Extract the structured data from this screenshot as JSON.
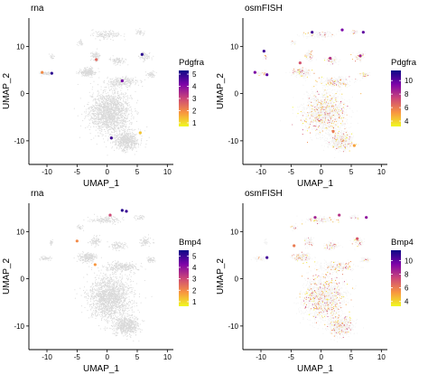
{
  "chart_data": [
    {
      "type": "scatter",
      "title": "rna",
      "xlabel": "UMAP_1",
      "ylabel": "UMAP_2",
      "xlim": [
        -13,
        11
      ],
      "ylim": [
        -15,
        16
      ],
      "xticks": [
        -10,
        -5,
        0,
        5,
        10
      ],
      "yticks": [
        -10,
        0,
        10
      ],
      "legend": {
        "title": "Pdgfra",
        "ticks": [
          1,
          2,
          3,
          4,
          5
        ],
        "range": [
          0.7,
          5.3
        ],
        "placement": "right"
      },
      "highlight": [
        {
          "x": -9.2,
          "y": 4.3,
          "value": 5.0
        },
        {
          "x": -10.8,
          "y": 4.5,
          "value": 2.0
        },
        {
          "x": 5.8,
          "y": 8.3,
          "value": 5.0
        },
        {
          "x": 2.5,
          "y": 2.7,
          "value": 4.2
        },
        {
          "x": -1.8,
          "y": 7.2,
          "value": 2.5
        },
        {
          "x": 5.5,
          "y": -8.3,
          "value": 1.3
        },
        {
          "x": 0.7,
          "y": -9.4,
          "value": 4.8
        }
      ]
    },
    {
      "type": "scatter",
      "title": "osmFISH",
      "xlabel": "UMAP_1",
      "ylabel": "UMAP_2",
      "xlim": [
        -13,
        11
      ],
      "ylim": [
        -15,
        16
      ],
      "xticks": [
        -10,
        -5,
        0,
        5,
        10
      ],
      "yticks": [
        -10,
        0,
        10
      ],
      "legend": {
        "title": "Pdgfra",
        "ticks": [
          4,
          6,
          8,
          10
        ],
        "range": [
          3.2,
          11.5
        ],
        "placement": "right"
      },
      "highlight": [
        {
          "x": -1.5,
          "y": 13.0,
          "value": 10.5
        },
        {
          "x": 3.5,
          "y": 13.5,
          "value": 9.5
        },
        {
          "x": 7.0,
          "y": 13.0,
          "value": 10.0
        },
        {
          "x": -9.5,
          "y": 9.0,
          "value": 10.5
        },
        {
          "x": -11.0,
          "y": 4.5,
          "value": 9.5
        },
        {
          "x": -9.0,
          "y": 4.0,
          "value": 10.0
        },
        {
          "x": -3.5,
          "y": 6.5,
          "value": 7.0
        },
        {
          "x": 1.5,
          "y": 7.5,
          "value": 8.0
        },
        {
          "x": 6.5,
          "y": 8.0,
          "value": 8.5
        },
        {
          "x": 2.0,
          "y": -8.0,
          "value": 6.0
        },
        {
          "x": 5.5,
          "y": -11.0,
          "value": 5.0
        }
      ]
    },
    {
      "type": "scatter",
      "title": "rna",
      "xlabel": "UMAP_1",
      "ylabel": "UMAP_2",
      "xlim": [
        -13,
        11
      ],
      "ylim": [
        -15,
        16
      ],
      "xticks": [
        -10,
        -5,
        0,
        5,
        10
      ],
      "yticks": [
        -10,
        0,
        10
      ],
      "legend": {
        "title": "Bmp4",
        "ticks": [
          1,
          2,
          3,
          4,
          5
        ],
        "range": [
          0.6,
          5.5
        ],
        "placement": "right"
      },
      "highlight": [
        {
          "x": 2.5,
          "y": 14.5,
          "value": 5.2
        },
        {
          "x": 3.2,
          "y": 14.3,
          "value": 5.0
        },
        {
          "x": 0.5,
          "y": 13.5,
          "value": 3.0
        },
        {
          "x": -5.0,
          "y": 8.0,
          "value": 2.0
        },
        {
          "x": -2.0,
          "y": 3.0,
          "value": 1.8
        }
      ]
    },
    {
      "type": "scatter",
      "title": "osmFISH",
      "xlabel": "UMAP_1",
      "ylabel": "UMAP_2",
      "xlim": [
        -13,
        11
      ],
      "ylim": [
        -15,
        16
      ],
      "xticks": [
        -10,
        -5,
        0,
        5,
        10
      ],
      "yticks": [
        -10,
        0,
        10
      ],
      "legend": {
        "title": "Bmp4",
        "ticks": [
          4,
          6,
          8,
          10
        ],
        "range": [
          3.3,
          11.5
        ],
        "placement": "right"
      },
      "highlight": [
        {
          "x": -1.0,
          "y": 13.0,
          "value": 8.5
        },
        {
          "x": 3.0,
          "y": 13.5,
          "value": 8.0
        },
        {
          "x": 7.5,
          "y": 13.0,
          "value": 9.0
        },
        {
          "x": -9.0,
          "y": 4.5,
          "value": 10.5
        },
        {
          "x": -4.5,
          "y": 7.0,
          "value": 6.0
        },
        {
          "x": 6.0,
          "y": 8.5,
          "value": 7.0
        }
      ]
    }
  ]
}
